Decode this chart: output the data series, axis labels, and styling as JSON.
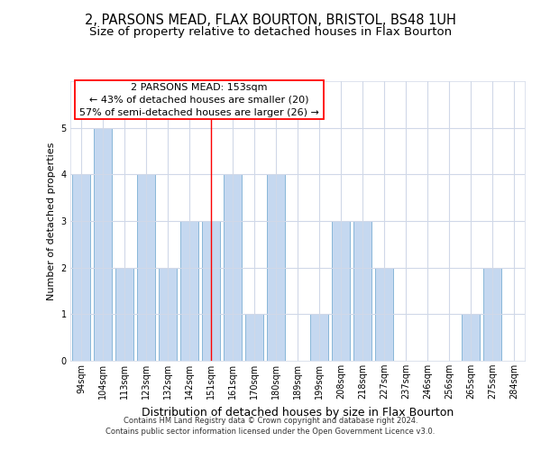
{
  "title": "2, PARSONS MEAD, FLAX BOURTON, BRISTOL, BS48 1UH",
  "subtitle": "Size of property relative to detached houses in Flax Bourton",
  "xlabel": "Distribution of detached houses by size in Flax Bourton",
  "ylabel": "Number of detached properties",
  "categories": [
    "94sqm",
    "104sqm",
    "113sqm",
    "123sqm",
    "132sqm",
    "142sqm",
    "151sqm",
    "161sqm",
    "170sqm",
    "180sqm",
    "189sqm",
    "199sqm",
    "208sqm",
    "218sqm",
    "227sqm",
    "237sqm",
    "246sqm",
    "256sqm",
    "265sqm",
    "275sqm",
    "284sqm"
  ],
  "values": [
    4,
    5,
    2,
    4,
    2,
    3,
    3,
    4,
    1,
    4,
    0,
    1,
    3,
    3,
    2,
    0,
    0,
    0,
    1,
    2,
    0
  ],
  "bar_color": "#c5d8f0",
  "bar_edge_color": "#7bafd4",
  "red_line_index": 6,
  "annotation_text": "2 PARSONS MEAD: 153sqm\n← 43% of detached houses are smaller (20)\n57% of semi-detached houses are larger (26) →",
  "ylim": [
    0,
    6
  ],
  "yticks": [
    0,
    1,
    2,
    3,
    4,
    5,
    6
  ],
  "background_color": "#ffffff",
  "plot_bg_color": "#ffffff",
  "grid_color": "#d0d8e8",
  "footer_text": "Contains HM Land Registry data © Crown copyright and database right 2024.\nContains public sector information licensed under the Open Government Licence v3.0.",
  "title_fontsize": 10.5,
  "subtitle_fontsize": 9.5,
  "xlabel_fontsize": 9,
  "ylabel_fontsize": 8,
  "tick_fontsize": 7,
  "annotation_fontsize": 8
}
